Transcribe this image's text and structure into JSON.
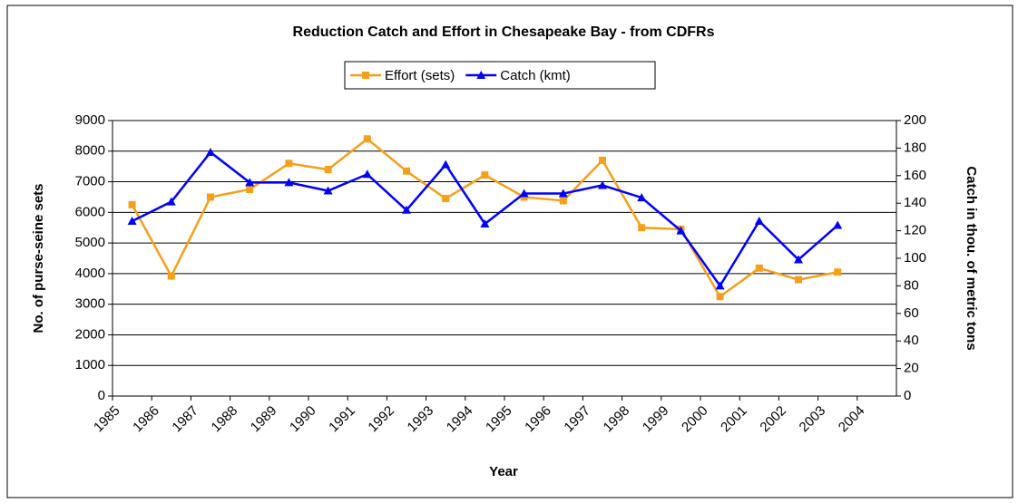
{
  "chart_data": {
    "type": "line",
    "title": "Reduction Catch and Effort in Chesapeake Bay - from CDFRs",
    "x_label": "Year",
    "y_label": "No. of purse-seine sets",
    "y2_label": "Catch in thou. of metric tons",
    "x": [
      1985.5,
      1986.5,
      1987.5,
      1988.5,
      1989.5,
      1990.5,
      1991.5,
      1992.5,
      1993.5,
      1994.5,
      1995.5,
      1996.5,
      1997.5,
      1998.5,
      1999.5,
      2000.5,
      2001.5,
      2002.5,
      2003.5
    ],
    "xlim": [
      1985,
      2005
    ],
    "xticks": [
      1985,
      1986,
      1987,
      1988,
      1989,
      1990,
      1991,
      1992,
      1993,
      1994,
      1995,
      1996,
      1997,
      1998,
      1999,
      2000,
      2001,
      2002,
      2003,
      2004
    ],
    "ylim": [
      0,
      9000
    ],
    "yticks": [
      0,
      1000,
      2000,
      3000,
      4000,
      5000,
      6000,
      7000,
      8000,
      9000
    ],
    "y2lim": [
      0,
      200
    ],
    "y2ticks": [
      0,
      20,
      40,
      60,
      80,
      100,
      120,
      140,
      160,
      180,
      200
    ],
    "grid": true,
    "legend": "top",
    "series": [
      {
        "name": "Effort (sets)",
        "color": "#F5A01A",
        "marker": "square",
        "values": [
          6250,
          3920,
          6500,
          6750,
          7600,
          7400,
          8400,
          7350,
          6450,
          7220,
          6500,
          6380,
          7700,
          5500,
          5450,
          3250,
          4180,
          3800,
          4050
        ]
      },
      {
        "name": "Catch (kmt)",
        "color": "#0000FF",
        "marker": "triangle",
        "axis": "y2",
        "values": [
          127,
          141,
          177,
          155,
          155,
          149,
          161,
          135,
          168,
          125,
          147,
          147,
          153,
          144,
          120,
          80,
          127,
          99,
          124
        ]
      }
    ]
  }
}
